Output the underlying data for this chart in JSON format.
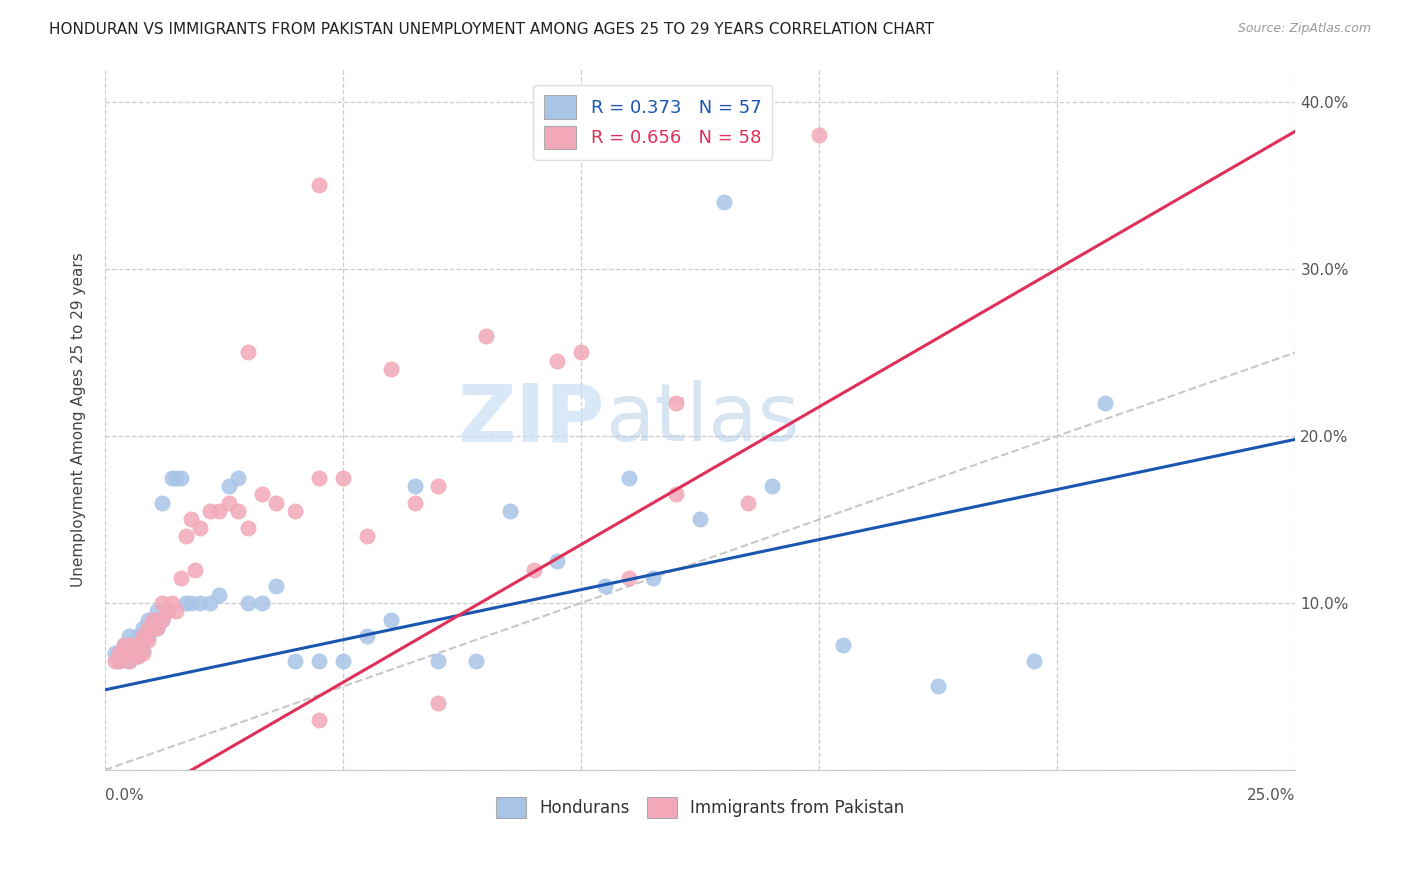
{
  "title": "HONDURAN VS IMMIGRANTS FROM PAKISTAN UNEMPLOYMENT AMONG AGES 25 TO 29 YEARS CORRELATION CHART",
  "source": "Source: ZipAtlas.com",
  "ylabel": "Unemployment Among Ages 25 to 29 years",
  "xlim": [
    0.0,
    0.25
  ],
  "ylim": [
    0.0,
    0.42
  ],
  "legend_blue_label": "R = 0.373   N = 57",
  "legend_pink_label": "R = 0.656   N = 58",
  "legend_bottom_blue": "Hondurans",
  "legend_bottom_pink": "Immigrants from Pakistan",
  "blue_scatter_color": "#a8c5e8",
  "pink_scatter_color": "#f2a8b8",
  "blue_line_color": "#1a56b0",
  "pink_line_color": "#e0305a",
  "diagonal_color": "#c8c8c8",
  "watermark_color": "#c8dff5",
  "blue_line_intercept": 0.048,
  "blue_line_slope": 0.6,
  "pink_line_intercept": -0.03,
  "pink_line_slope": 1.65,
  "hondurans_x": [
    0.002,
    0.003,
    0.004,
    0.004,
    0.005,
    0.005,
    0.005,
    0.006,
    0.006,
    0.007,
    0.007,
    0.007,
    0.008,
    0.008,
    0.008,
    0.009,
    0.009,
    0.01,
    0.01,
    0.011,
    0.011,
    0.012,
    0.012,
    0.013,
    0.014,
    0.015,
    0.016,
    0.017,
    0.018,
    0.02,
    0.022,
    0.024,
    0.026,
    0.028,
    0.03,
    0.033,
    0.036,
    0.04,
    0.045,
    0.05,
    0.055,
    0.06,
    0.065,
    0.07,
    0.078,
    0.085,
    0.095,
    0.105,
    0.115,
    0.125,
    0.14,
    0.155,
    0.175,
    0.195,
    0.21,
    0.11,
    0.13
  ],
  "hondurans_y": [
    0.07,
    0.065,
    0.075,
    0.07,
    0.072,
    0.065,
    0.08,
    0.075,
    0.07,
    0.068,
    0.08,
    0.075,
    0.072,
    0.085,
    0.078,
    0.08,
    0.09,
    0.085,
    0.09,
    0.095,
    0.085,
    0.09,
    0.16,
    0.095,
    0.175,
    0.175,
    0.175,
    0.1,
    0.1,
    0.1,
    0.1,
    0.105,
    0.17,
    0.175,
    0.1,
    0.1,
    0.11,
    0.065,
    0.065,
    0.065,
    0.08,
    0.09,
    0.17,
    0.065,
    0.065,
    0.155,
    0.125,
    0.11,
    0.115,
    0.15,
    0.17,
    0.075,
    0.05,
    0.065,
    0.22,
    0.175,
    0.34
  ],
  "pakistan_x": [
    0.002,
    0.003,
    0.003,
    0.004,
    0.004,
    0.005,
    0.005,
    0.006,
    0.006,
    0.007,
    0.007,
    0.008,
    0.008,
    0.008,
    0.009,
    0.009,
    0.01,
    0.01,
    0.011,
    0.011,
    0.012,
    0.012,
    0.013,
    0.013,
    0.014,
    0.015,
    0.016,
    0.017,
    0.018,
    0.019,
    0.02,
    0.022,
    0.024,
    0.026,
    0.028,
    0.03,
    0.033,
    0.036,
    0.04,
    0.045,
    0.05,
    0.055,
    0.06,
    0.065,
    0.07,
    0.08,
    0.09,
    0.1,
    0.11,
    0.12,
    0.135,
    0.15,
    0.03,
    0.07,
    0.045,
    0.095,
    0.12,
    0.045
  ],
  "pakistan_y": [
    0.065,
    0.07,
    0.065,
    0.07,
    0.075,
    0.065,
    0.075,
    0.07,
    0.075,
    0.072,
    0.068,
    0.08,
    0.07,
    0.078,
    0.085,
    0.078,
    0.085,
    0.09,
    0.085,
    0.09,
    0.09,
    0.1,
    0.095,
    0.095,
    0.1,
    0.095,
    0.115,
    0.14,
    0.15,
    0.12,
    0.145,
    0.155,
    0.155,
    0.16,
    0.155,
    0.145,
    0.165,
    0.16,
    0.155,
    0.175,
    0.175,
    0.14,
    0.24,
    0.16,
    0.17,
    0.26,
    0.12,
    0.25,
    0.115,
    0.165,
    0.16,
    0.38,
    0.25,
    0.04,
    0.35,
    0.245,
    0.22,
    0.03
  ]
}
